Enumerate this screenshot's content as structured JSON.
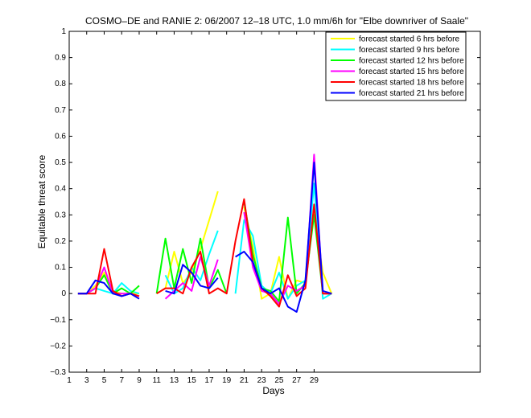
{
  "chart_data": {
    "type": "line",
    "title": "COSMO–DE and RANIE 2: 06/2007 12–18 UTC, 1.0 mm/6h for \"Elbe downriver of Saale\"",
    "xlabel": "Days",
    "ylabel": "Equitable threat score",
    "xlim": [
      1,
      48
    ],
    "ylim": [
      -0.3,
      1
    ],
    "xticks": [
      1,
      3,
      5,
      7,
      9,
      11,
      13,
      15,
      17,
      19,
      21,
      23,
      25,
      27,
      29
    ],
    "xtick_labels": [
      "1",
      "3",
      "5",
      "7",
      "9",
      "11",
      "13",
      "15",
      "17",
      "19",
      "21",
      "23",
      "25",
      "27",
      "29"
    ],
    "yticks": [
      -0.3,
      -0.2,
      -0.1,
      0,
      0.1,
      0.2,
      0.3,
      0.4,
      0.5,
      0.6,
      0.7,
      0.8,
      0.9,
      1
    ],
    "ytick_labels": [
      "−0.3",
      "−0.2",
      "−0.1",
      "0",
      "0.1",
      "0.2",
      "0.3",
      "0.4",
      "0.5",
      "0.6",
      "0.7",
      "0.8",
      "0.9",
      "1"
    ],
    "legend_position": "top-right",
    "grid": false,
    "x": [
      2,
      3,
      4,
      5,
      6,
      7,
      8,
      9,
      10,
      11,
      12,
      13,
      14,
      15,
      16,
      17,
      18,
      19,
      20,
      21,
      22,
      23,
      24,
      25,
      26,
      27,
      28,
      29,
      30,
      31
    ],
    "series": [
      {
        "name": "forecast started 6 hrs before",
        "color": "#ffff00",
        "values": [
          0,
          0,
          0.03,
          0.08,
          0.01,
          0,
          0,
          0,
          null,
          0,
          0.02,
          0.16,
          0.04,
          0.08,
          0.17,
          0.28,
          0.39,
          null,
          null,
          0.33,
          0.18,
          -0.02,
          0,
          0.14,
          -0.02,
          0.05,
          0.04,
          0.31,
          0.08,
          0
        ]
      },
      {
        "name": "forecast started 9 hrs before",
        "color": "#00ffff",
        "values": [
          0,
          0,
          0.02,
          0.01,
          0,
          0.04,
          0.01,
          0,
          null,
          null,
          0.07,
          0,
          0.02,
          0.1,
          0.05,
          0.15,
          0.24,
          null,
          0,
          0.28,
          0.22,
          0.03,
          0,
          0.08,
          -0.02,
          0.03,
          0.05,
          0.42,
          -0.02,
          0
        ]
      },
      {
        "name": "forecast started 12 hrs before",
        "color": "#00ff00",
        "values": [
          0,
          0,
          0.02,
          0.07,
          0,
          0.02,
          0,
          0.03,
          null,
          0,
          0.21,
          0.02,
          0.17,
          0.04,
          0.21,
          0.02,
          0.09,
          0,
          null,
          0.35,
          0.15,
          0.02,
          0.01,
          -0.03,
          0.29,
          0,
          0.04,
          0.3,
          0,
          0
        ]
      },
      {
        "name": "forecast started 15 hrs before",
        "color": "#ff00ff",
        "values": [
          0,
          0,
          0.02,
          0.1,
          0,
          0,
          0,
          -0.01,
          null,
          null,
          -0.02,
          0.01,
          0.04,
          0.01,
          0.14,
          0.03,
          0.13,
          null,
          null,
          0.31,
          0.1,
          0.01,
          0,
          -0.04,
          0.03,
          0.01,
          0.03,
          0.53,
          0,
          0
        ]
      },
      {
        "name": "forecast started 18 hrs before",
        "color": "#ff0000",
        "values": [
          0,
          0,
          0,
          0.17,
          0.01,
          -0.01,
          0,
          -0.01,
          null,
          0,
          0.02,
          0.02,
          0,
          0.1,
          0.16,
          0,
          0.02,
          0,
          0.2,
          0.36,
          0.12,
          0.02,
          -0.01,
          -0.05,
          0.07,
          -0.01,
          0.02,
          0.34,
          0,
          0
        ]
      },
      {
        "name": "forecast started 21 hrs before",
        "color": "#0000ff",
        "values": [
          0,
          0,
          0.05,
          0.04,
          0,
          -0.01,
          0,
          -0.02,
          null,
          null,
          0.01,
          0,
          0.11,
          0.08,
          0.03,
          0.02,
          0.06,
          null,
          0.14,
          0.16,
          0.12,
          0.02,
          0,
          0.02,
          -0.05,
          -0.07,
          0.05,
          0.5,
          0.01,
          0
        ]
      }
    ]
  }
}
